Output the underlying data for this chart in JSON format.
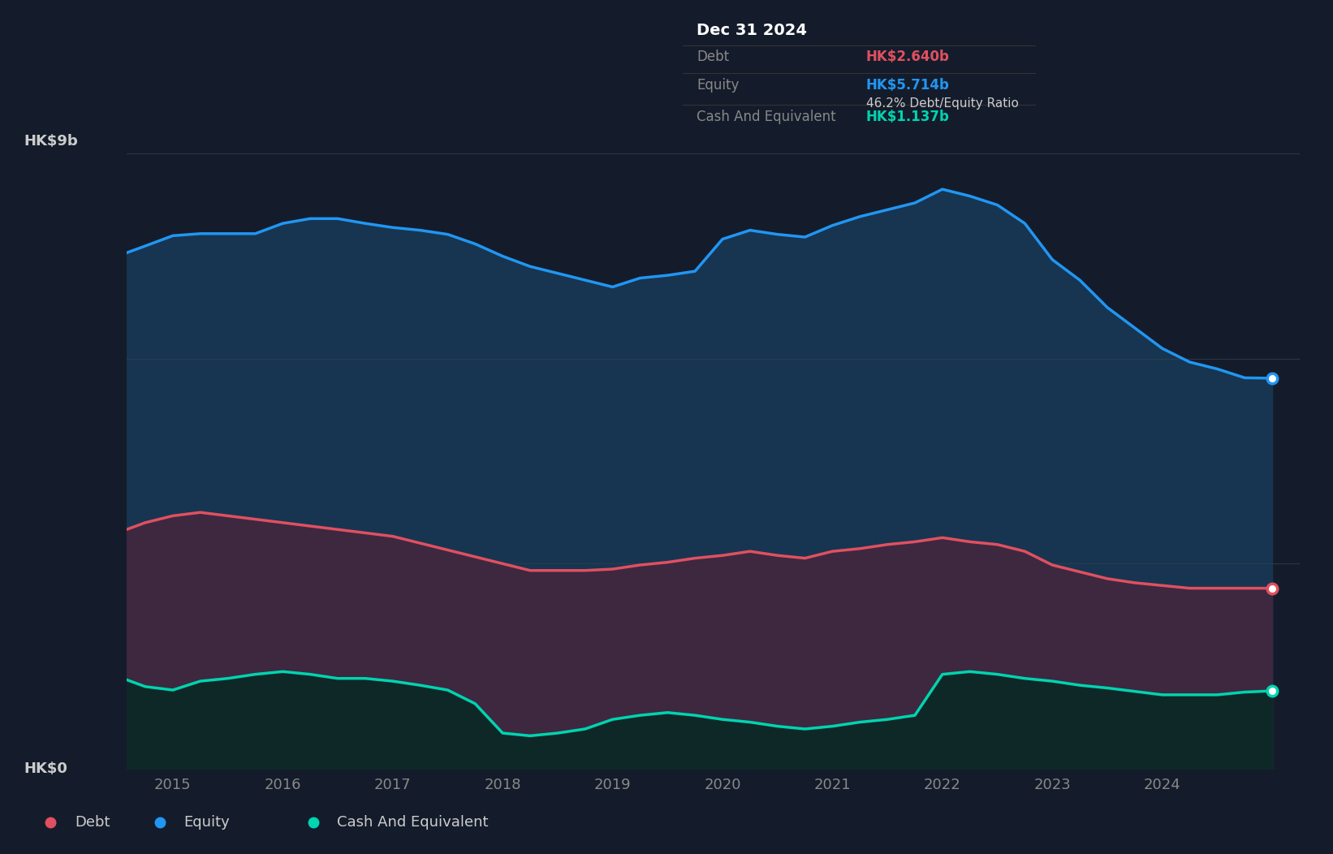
{
  "background_color": "#141c2b",
  "plot_bg_color": "#141c2b",
  "ylim": [
    0,
    9
  ],
  "xlim_start": 2014.58,
  "xlim_end": 2025.25,
  "xticks": [
    2015,
    2016,
    2017,
    2018,
    2019,
    2020,
    2021,
    2022,
    2023,
    2024
  ],
  "equity_color": "#2196F3",
  "debt_color": "#e05060",
  "cash_color": "#00d4b0",
  "equity_fill": "#173550",
  "debt_fill": "#3d2840",
  "cash_fill": "#0e2828",
  "grid_color": "#2e3e50",
  "tooltip_bg": "#060606",
  "tooltip_border": "#2a2a2a",
  "tooltip_title": "Dec 31 2024",
  "tooltip_debt_label": "Debt",
  "tooltip_debt_value": "HK$2.640b",
  "tooltip_equity_label": "Equity",
  "tooltip_equity_value": "HK$5.714b",
  "tooltip_ratio": "46.2% Debt/Equity Ratio",
  "tooltip_cash_label": "Cash And Equivalent",
  "tooltip_cash_value": "HK$1.137b",
  "legend_debt": "Debt",
  "legend_equity": "Equity",
  "legend_cash": "Cash And Equivalent",
  "equity_data_x": [
    2014.58,
    2014.75,
    2015.0,
    2015.25,
    2015.5,
    2015.75,
    2016.0,
    2016.25,
    2016.5,
    2016.75,
    2017.0,
    2017.25,
    2017.5,
    2017.75,
    2018.0,
    2018.25,
    2018.5,
    2018.75,
    2019.0,
    2019.25,
    2019.5,
    2019.75,
    2020.0,
    2020.25,
    2020.5,
    2020.75,
    2021.0,
    2021.25,
    2021.5,
    2021.75,
    2022.0,
    2022.25,
    2022.5,
    2022.75,
    2023.0,
    2023.25,
    2023.5,
    2023.75,
    2024.0,
    2024.25,
    2024.5,
    2024.75,
    2025.0
  ],
  "equity_data_y": [
    7.55,
    7.65,
    7.8,
    7.83,
    7.83,
    7.83,
    7.98,
    8.05,
    8.05,
    7.98,
    7.92,
    7.88,
    7.82,
    7.68,
    7.5,
    7.35,
    7.25,
    7.15,
    7.05,
    7.18,
    7.22,
    7.28,
    7.75,
    7.88,
    7.82,
    7.78,
    7.95,
    8.08,
    8.18,
    8.28,
    8.48,
    8.38,
    8.25,
    7.98,
    7.45,
    7.15,
    6.75,
    6.45,
    6.15,
    5.95,
    5.85,
    5.72,
    5.714
  ],
  "debt_data_x": [
    2014.58,
    2014.75,
    2015.0,
    2015.25,
    2015.5,
    2015.75,
    2016.0,
    2016.25,
    2016.5,
    2016.75,
    2017.0,
    2017.25,
    2017.5,
    2017.75,
    2018.0,
    2018.25,
    2018.5,
    2018.75,
    2019.0,
    2019.25,
    2019.5,
    2019.75,
    2020.0,
    2020.25,
    2020.5,
    2020.75,
    2021.0,
    2021.25,
    2021.5,
    2021.75,
    2022.0,
    2022.25,
    2022.5,
    2022.75,
    2023.0,
    2023.25,
    2023.5,
    2023.75,
    2024.0,
    2024.25,
    2024.5,
    2024.75,
    2025.0
  ],
  "debt_data_y": [
    3.5,
    3.6,
    3.7,
    3.75,
    3.7,
    3.65,
    3.6,
    3.55,
    3.5,
    3.45,
    3.4,
    3.3,
    3.2,
    3.1,
    3.0,
    2.9,
    2.9,
    2.9,
    2.92,
    2.98,
    3.02,
    3.08,
    3.12,
    3.18,
    3.12,
    3.08,
    3.18,
    3.22,
    3.28,
    3.32,
    3.38,
    3.32,
    3.28,
    3.18,
    2.98,
    2.88,
    2.78,
    2.72,
    2.68,
    2.64,
    2.64,
    2.64,
    2.64
  ],
  "cash_data_x": [
    2014.58,
    2014.75,
    2015.0,
    2015.25,
    2015.5,
    2015.75,
    2016.0,
    2016.25,
    2016.5,
    2016.75,
    2017.0,
    2017.25,
    2017.5,
    2017.75,
    2018.0,
    2018.25,
    2018.5,
    2018.75,
    2019.0,
    2019.25,
    2019.5,
    2019.75,
    2020.0,
    2020.25,
    2020.5,
    2020.75,
    2021.0,
    2021.25,
    2021.5,
    2021.75,
    2022.0,
    2022.25,
    2022.5,
    2022.75,
    2023.0,
    2023.25,
    2023.5,
    2023.75,
    2024.0,
    2024.25,
    2024.5,
    2024.75,
    2025.0
  ],
  "cash_data_y": [
    1.3,
    1.2,
    1.15,
    1.28,
    1.32,
    1.38,
    1.42,
    1.38,
    1.32,
    1.32,
    1.28,
    1.22,
    1.15,
    0.95,
    0.52,
    0.48,
    0.52,
    0.58,
    0.72,
    0.78,
    0.82,
    0.78,
    0.72,
    0.68,
    0.62,
    0.58,
    0.62,
    0.68,
    0.72,
    0.78,
    1.38,
    1.42,
    1.38,
    1.32,
    1.28,
    1.22,
    1.18,
    1.13,
    1.08,
    1.08,
    1.08,
    1.12,
    1.137
  ]
}
